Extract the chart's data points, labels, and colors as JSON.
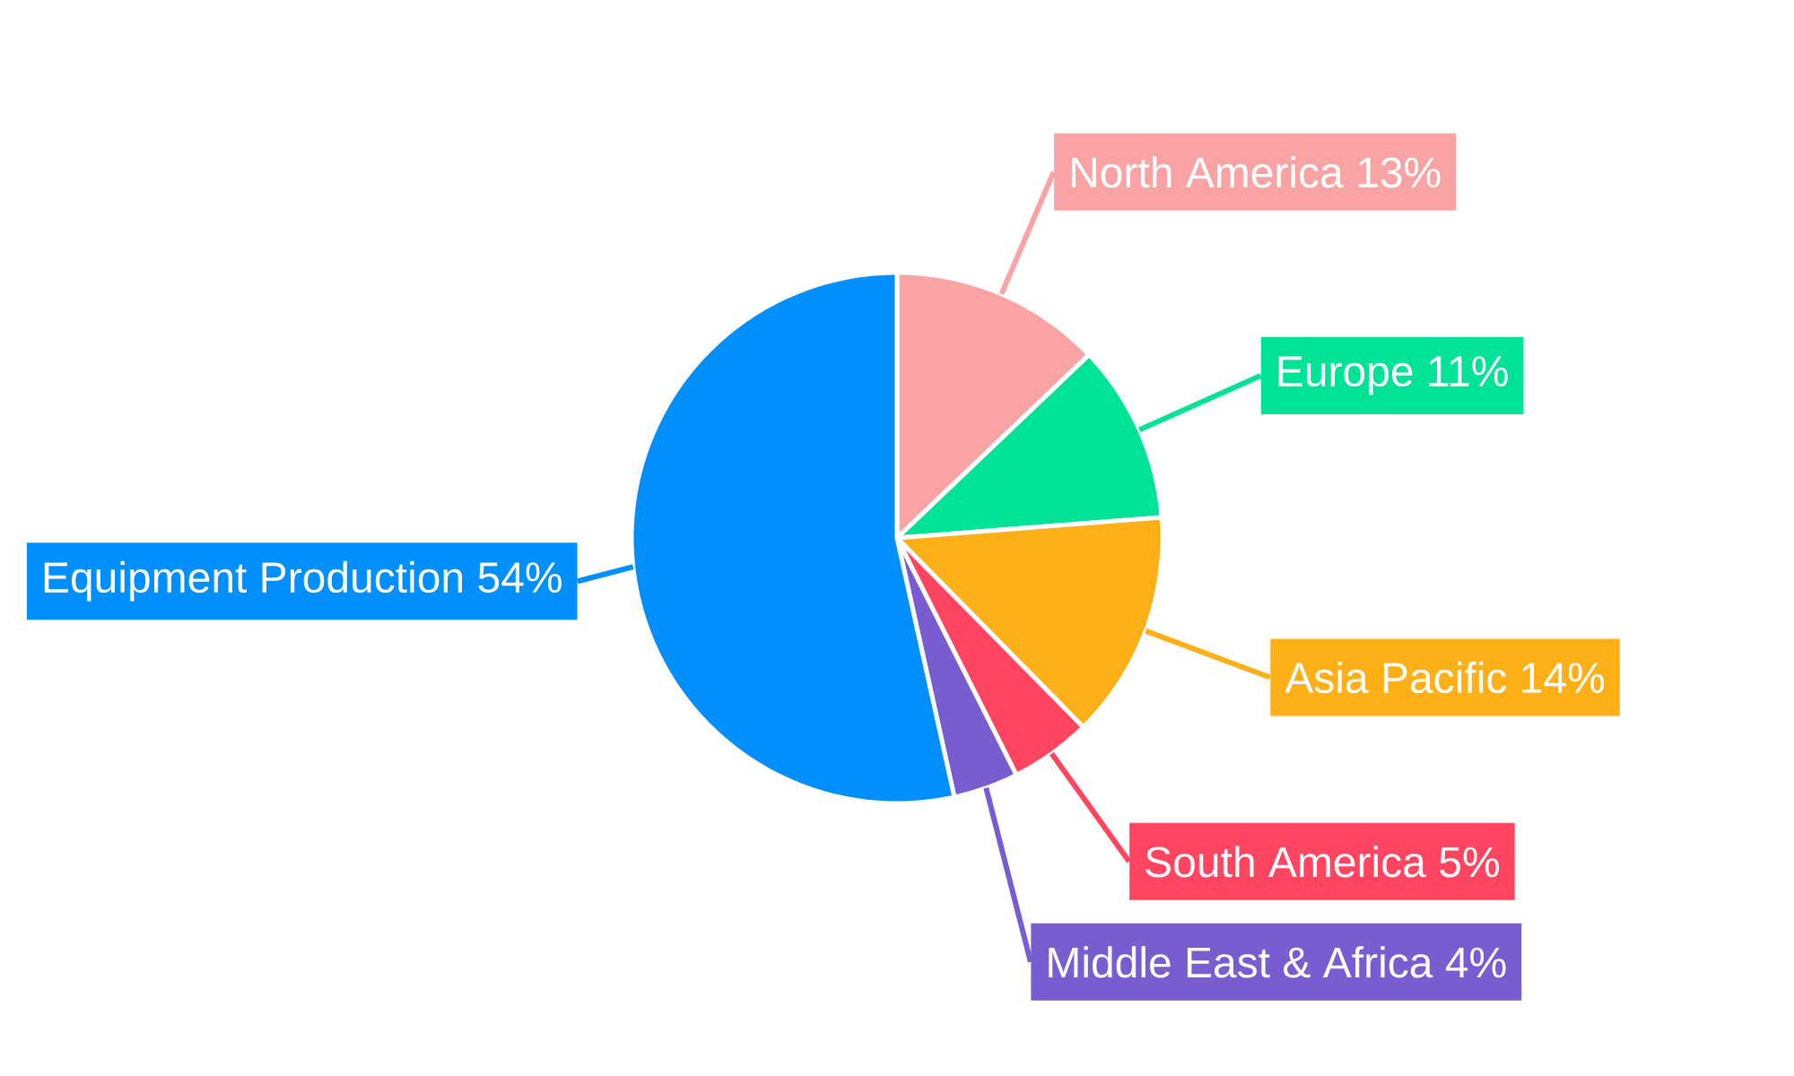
{
  "chart_data": {
    "type": "pie",
    "categories": [
      "North America",
      "Europe",
      "Asia Pacific",
      "South America",
      "Middle East & Africa",
      "Equipment Production"
    ],
    "values": [
      13,
      11,
      14,
      5,
      4,
      54
    ],
    "value_labels": [
      "13%",
      "11%",
      "14%",
      "5%",
      "4%",
      "54%"
    ],
    "colors": [
      "#f9a3a4",
      "#00e396",
      "#feb019",
      "#ff4560",
      "#775dd0",
      "#008ffb"
    ]
  }
}
